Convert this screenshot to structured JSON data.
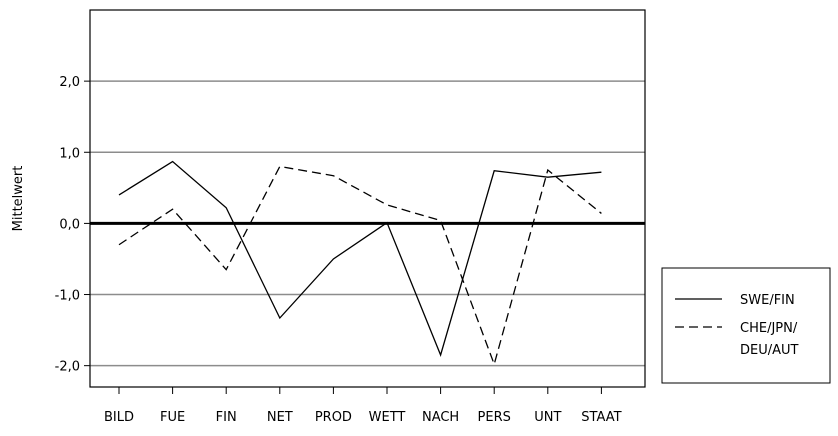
{
  "chart_data": {
    "type": "line",
    "title": "",
    "xlabel": "",
    "ylabel": "Mittelwert",
    "ylim": [
      -2.3,
      3.0
    ],
    "grid": true,
    "legend_placement": "bottom-right",
    "categories": [
      "BILD",
      "FUE",
      "FIN",
      "NET",
      "PROD",
      "WETT",
      "NACH",
      "PERS",
      "UNT",
      "STAAT"
    ],
    "y_ticks": [
      {
        "value": 2.0,
        "label": "2,0"
      },
      {
        "value": 1.0,
        "label": "1,0"
      },
      {
        "value": 0.0,
        "label": "0,0"
      },
      {
        "value": -1.0,
        "label": "-1,0"
      },
      {
        "value": -2.0,
        "label": "-2,0"
      }
    ],
    "series": [
      {
        "legend_lines": [
          "SWE/FIN"
        ],
        "dash": "solid",
        "values": [
          0.4,
          0.87,
          0.22,
          -1.33,
          -0.5,
          0.01,
          -1.85,
          0.74,
          0.65,
          0.72
        ]
      },
      {
        "legend_lines": [
          "CHE/JPN/",
          "DEU/AUT"
        ],
        "dash": "dashed",
        "values": [
          -0.3,
          0.2,
          -0.65,
          0.8,
          0.67,
          0.26,
          0.04,
          -1.98,
          0.75,
          0.14
        ]
      }
    ]
  }
}
